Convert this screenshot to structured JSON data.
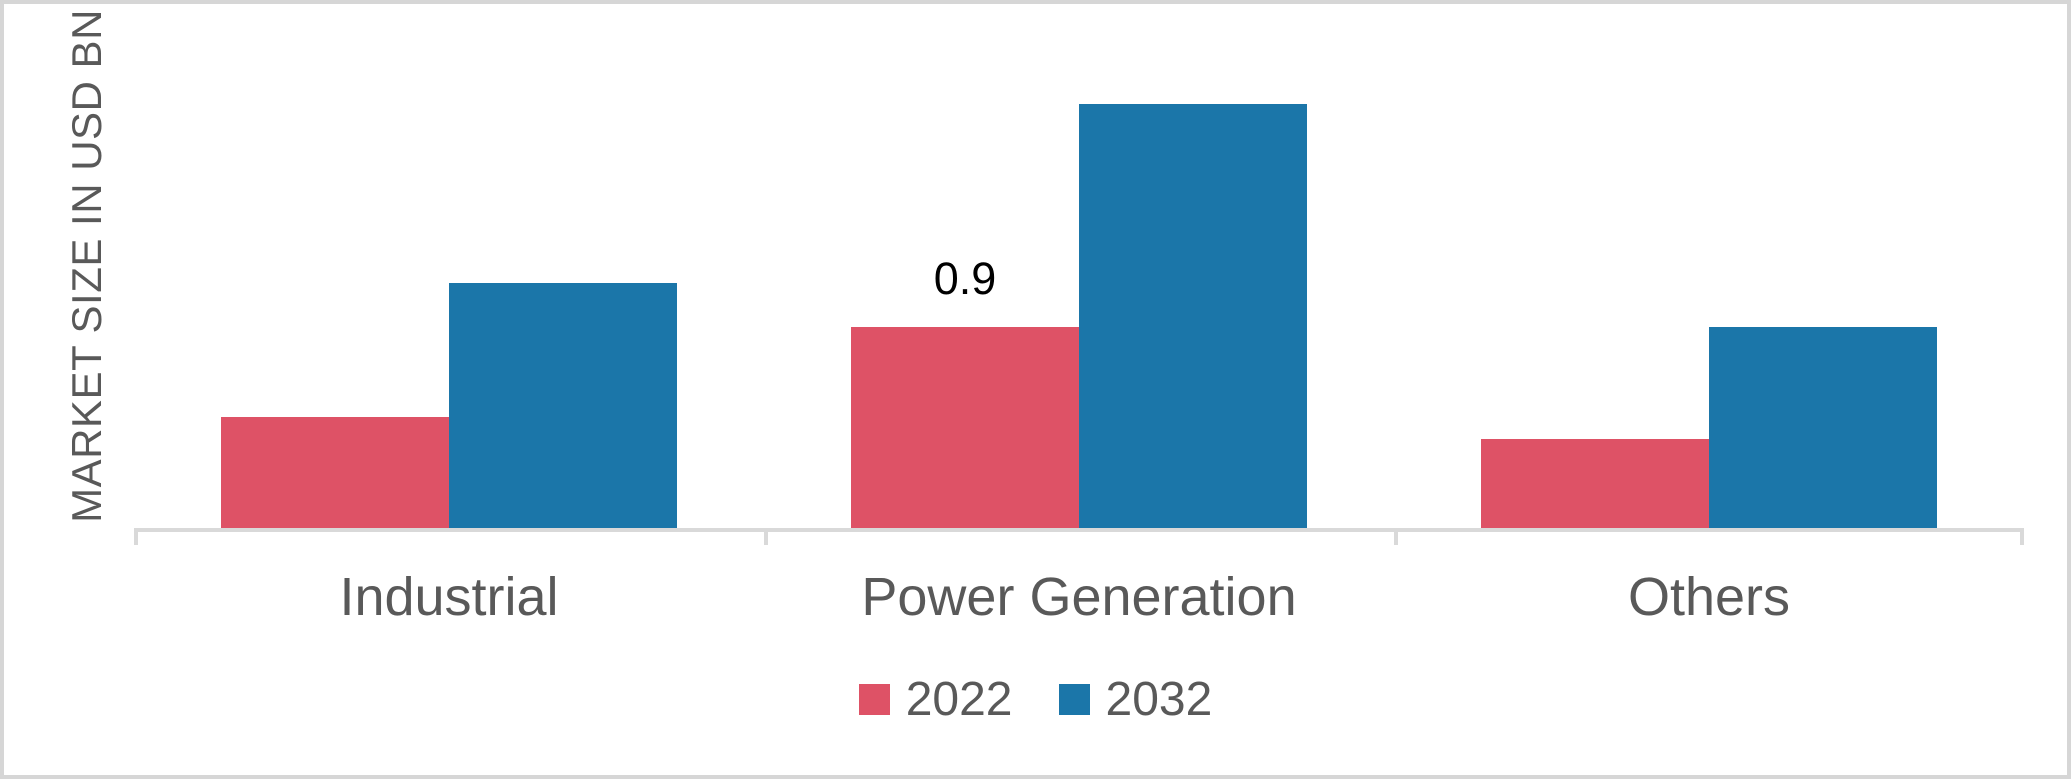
{
  "chart_data": {
    "type": "bar",
    "title": "",
    "xlabel": "",
    "ylabel": "MARKET SIZE IN USD BN",
    "categories": [
      "Industrial",
      "Power Generation",
      "Others"
    ],
    "series": [
      {
        "name": "2022",
        "color": "#DE5266",
        "values": [
          0.5,
          0.9,
          0.4
        ],
        "data_labels": [
          "",
          "0.9",
          ""
        ]
      },
      {
        "name": "2032",
        "color": "#1B76A9",
        "values": [
          1.1,
          1.9,
          0.9
        ],
        "data_labels": [
          "",
          "",
          ""
        ]
      }
    ],
    "ylim": [
      0,
      2.35
    ],
    "grid": false,
    "legend_position": "bottom",
    "colors": {
      "axis": "#D9D9D9",
      "frame": "#D6D6D6",
      "axis_text": "#595959",
      "data_label_text": "#000000",
      "background": "#FFFFFF"
    }
  }
}
